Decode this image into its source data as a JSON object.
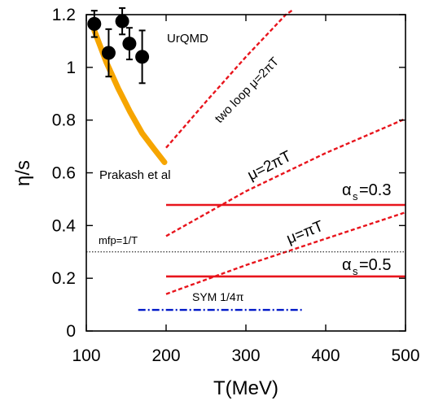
{
  "chart_data": {
    "type": "line",
    "title": "",
    "xlabel": "T(MeV)",
    "ylabel": "η/s",
    "xlim": [
      100,
      500
    ],
    "ylim": [
      0,
      1.2
    ],
    "xticks": [
      "100",
      "200",
      "300",
      "400",
      "500"
    ],
    "yticks": [
      "0",
      "0.2",
      "0.4",
      "0.6",
      "0.8",
      "1",
      "1.2"
    ],
    "grid": false,
    "legend": "none",
    "colors": {
      "red": "#e8141c",
      "orange": "#f6a500",
      "blue": "#0018c8",
      "black": "#000000"
    },
    "series": [
      {
        "key": "prakash",
        "style": "thick-solid-orange",
        "points": [
          [
            110,
            1.14
          ],
          [
            125,
            1.02
          ],
          [
            140,
            0.92
          ],
          [
            155,
            0.83
          ],
          [
            170,
            0.75
          ],
          [
            185,
            0.69
          ],
          [
            198,
            0.64
          ]
        ]
      },
      {
        "key": "twoloop",
        "style": "dashed-red",
        "points": [
          [
            200,
            0.695
          ],
          [
            250,
            0.87
          ],
          [
            300,
            1.04
          ],
          [
            350,
            1.2
          ],
          [
            360,
            1.22
          ]
        ]
      },
      {
        "key": "mu2pi",
        "style": "dashed-red",
        "points": [
          [
            200,
            0.36
          ],
          [
            300,
            0.53
          ],
          [
            400,
            0.675
          ],
          [
            500,
            0.805
          ]
        ]
      },
      {
        "key": "mupi",
        "style": "dashed-red",
        "points": [
          [
            200,
            0.14
          ],
          [
            300,
            0.25
          ],
          [
            400,
            0.35
          ],
          [
            500,
            0.45
          ]
        ]
      },
      {
        "key": "as03",
        "style": "solid-red",
        "points": [
          [
            200,
            0.478
          ],
          [
            500,
            0.478
          ]
        ]
      },
      {
        "key": "as05",
        "style": "solid-red",
        "points": [
          [
            200,
            0.207
          ],
          [
            500,
            0.207
          ]
        ]
      },
      {
        "key": "mfp",
        "style": "dotted-black",
        "points": [
          [
            100,
            0.3
          ],
          [
            500,
            0.3
          ]
        ]
      },
      {
        "key": "sym",
        "style": "dashdot-blue",
        "points": [
          [
            165,
            0.08
          ],
          [
            370,
            0.08
          ]
        ]
      }
    ],
    "urqmd_points": [
      {
        "x": 110,
        "y": 1.165,
        "err": 0.05
      },
      {
        "x": 128,
        "y": 1.055,
        "err": 0.09
      },
      {
        "x": 145,
        "y": 1.175,
        "err": 0.05
      },
      {
        "x": 154,
        "y": 1.09,
        "err": 0.06
      },
      {
        "x": 170,
        "y": 1.04,
        "err": 0.1
      }
    ],
    "annotations": {
      "urqmd": "UrQMD",
      "prakash": "Prakash et al",
      "twoloop": "two loop μ=2πT",
      "mu2pi": "μ=2πT",
      "mupi": "μ=πT",
      "as03_main": "α",
      "as03_sub": "s",
      "as03_val": "=0.3",
      "as05_main": "α",
      "as05_sub": "s",
      "as05_val": "=0.5",
      "mfp": "mfp=1/T",
      "sym": "SYM 1/4π"
    }
  }
}
